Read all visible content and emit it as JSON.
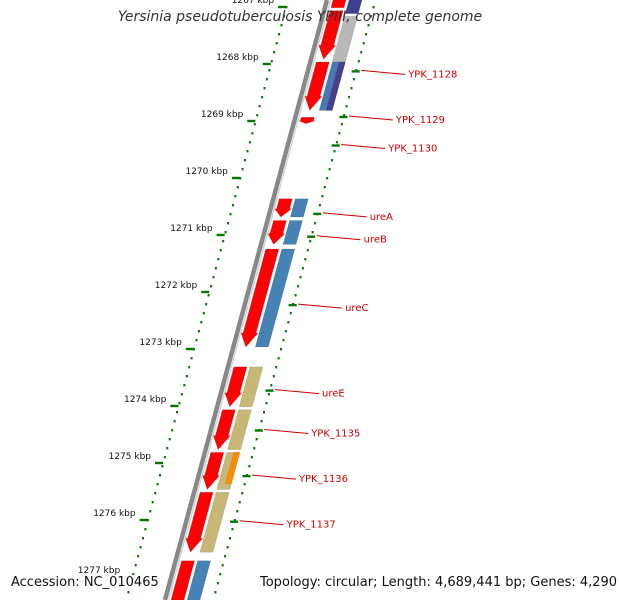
{
  "title": "Yersinia pseudotuberculosis YPIII, complete genome",
  "footer": {
    "accession": "Accession: NC_010465",
    "topology": "Topology: circular; Length: 4,689,441 bp; Genes: 4,290"
  },
  "scale_ticks": [
    {
      "kbp": 1267,
      "label": "1267 kbp"
    },
    {
      "kbp": 1268,
      "label": "1268 kbp"
    },
    {
      "kbp": 1269,
      "label": "1269 kbp"
    },
    {
      "kbp": 1270,
      "label": "1270 kbp"
    },
    {
      "kbp": 1271,
      "label": "1271 kbp"
    },
    {
      "kbp": 1272,
      "label": "1272 kbp"
    },
    {
      "kbp": 1273,
      "label": "1273 kbp"
    },
    {
      "kbp": 1274,
      "label": "1274 kbp"
    },
    {
      "kbp": 1275,
      "label": "1275 kbp"
    },
    {
      "kbp": 1276,
      "label": "1276 kbp"
    },
    {
      "kbp": 1277,
      "label": "1277 kbp"
    }
  ],
  "gene_labels": [
    {
      "name": "YPK_1128",
      "kbp": 1268.2
    },
    {
      "name": "YPK_1129",
      "kbp": 1269.0
    },
    {
      "name": "YPK_1130",
      "kbp": 1269.5
    },
    {
      "name": "ureA",
      "kbp": 1270.7
    },
    {
      "name": "ureB",
      "kbp": 1271.1
    },
    {
      "name": "ureC",
      "kbp": 1272.3
    },
    {
      "name": "ureE",
      "kbp": 1273.8
    },
    {
      "name": "YPK_1135",
      "kbp": 1274.5
    },
    {
      "name": "YPK_1136",
      "kbp": 1275.3
    },
    {
      "name": "YPK_1137",
      "kbp": 1276.1
    }
  ],
  "cds": [
    {
      "start": 1266.7,
      "end": 1267.05,
      "arrow": false
    },
    {
      "start": 1267.1,
      "end": 1267.95,
      "arrow": true
    },
    {
      "start": 1268.0,
      "end": 1268.85,
      "arrow": true
    },
    {
      "start": 1268.97,
      "end": 1269.08,
      "arrow": true
    },
    {
      "start": 1270.4,
      "end": 1270.72,
      "arrow": true
    },
    {
      "start": 1270.78,
      "end": 1271.2,
      "arrow": true
    },
    {
      "start": 1271.28,
      "end": 1273.0,
      "arrow": true
    },
    {
      "start": 1273.35,
      "end": 1274.05,
      "arrow": true
    },
    {
      "start": 1274.1,
      "end": 1274.8,
      "arrow": true
    },
    {
      "start": 1274.85,
      "end": 1275.5,
      "arrow": true
    },
    {
      "start": 1275.55,
      "end": 1276.6,
      "arrow": true
    },
    {
      "start": 1276.75,
      "end": 1277.5,
      "arrow": false
    }
  ],
  "functional": [
    {
      "start": 1266.7,
      "end": 1267.15,
      "color": "#3f3f8f"
    },
    {
      "start": 1267.2,
      "end": 1268.0,
      "color": "#b8b8b8"
    },
    {
      "start": 1268.0,
      "end": 1268.85,
      "color": "#4a78b0"
    },
    {
      "start": 1268.0,
      "end": 1268.85,
      "color": "#4a3f8a",
      "inner": true
    },
    {
      "start": 1270.4,
      "end": 1270.72,
      "color": "#4682b4"
    },
    {
      "start": 1270.78,
      "end": 1271.2,
      "color": "#4682b4"
    },
    {
      "start": 1271.28,
      "end": 1273.0,
      "color": "#4682b4"
    },
    {
      "start": 1273.35,
      "end": 1274.05,
      "color": "#c8b878"
    },
    {
      "start": 1274.1,
      "end": 1274.8,
      "color": "#c8b878"
    },
    {
      "start": 1274.85,
      "end": 1275.5,
      "color": "#c8b878"
    },
    {
      "start": 1274.85,
      "end": 1275.4,
      "color": "#ff8c00",
      "inner": true
    },
    {
      "start": 1275.55,
      "end": 1276.6,
      "color": "#c8b878"
    },
    {
      "start": 1276.75,
      "end": 1277.5,
      "color": "#4682b4"
    }
  ],
  "colors": {
    "cds": "#ff0000",
    "backbone": "#888888",
    "ticks": "#007700",
    "gene_label": "#cc0000"
  }
}
